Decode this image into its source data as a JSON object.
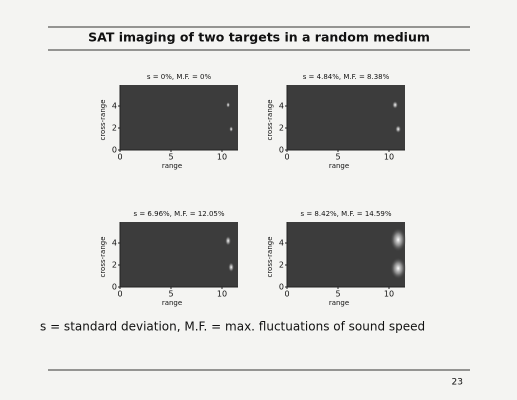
{
  "title": "SAT imaging of two targets in a random medium",
  "panels": [
    {
      "title": "s = 0%, M.F. = 0%",
      "xlabel": "range",
      "ylabel": "cross-range",
      "xticks": [
        0,
        5,
        10
      ],
      "yticks": [
        0,
        2,
        4
      ]
    },
    {
      "title": "s = 4.84%, M.F. = 8.38%",
      "xlabel": "range",
      "ylabel": "cross-range",
      "xticks": [
        0,
        5,
        10
      ],
      "yticks": [
        0,
        2,
        4
      ]
    },
    {
      "title": "s = 6.96%, M.F. = 12.05%",
      "xlabel": "range",
      "ylabel": "cross-range",
      "xticks": [
        0,
        5,
        10
      ],
      "yticks": [
        0,
        2,
        4
      ]
    },
    {
      "title": "s = 8.42%, M.F. = 14.59%",
      "xlabel": "range",
      "ylabel": "cross-range",
      "xticks": [
        0,
        5,
        10
      ],
      "yticks": [
        0,
        2,
        4
      ]
    }
  ],
  "caption": "s = standard deviation, M.F. = max. fluctuations of sound speed",
  "page_number": "23"
}
